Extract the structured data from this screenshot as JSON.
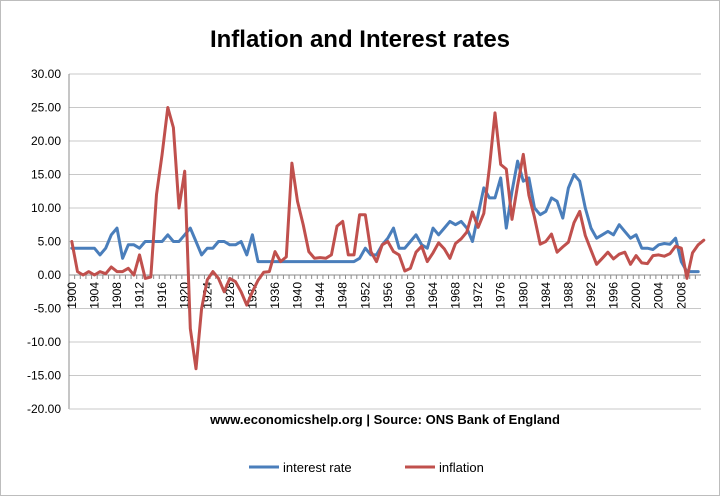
{
  "chart_data": {
    "type": "line",
    "title": "Inflation and Interest rates",
    "source_note": "www.economicshelp.org | Source: ONS Bank of England",
    "xlabel": "",
    "ylabel": "",
    "x_start": 1900,
    "x_end": 2011,
    "ylim": [
      -20,
      30
    ],
    "y_ticks": [
      "30.00",
      "25.00",
      "20.00",
      "15.00",
      "10.00",
      "5.00",
      "0.00",
      "-5.00",
      "-10.00",
      "-15.00",
      "-20.00"
    ],
    "x_tick_labels": [
      "1900",
      "1904",
      "1908",
      "1912",
      "1916",
      "1920",
      "1924",
      "1928",
      "1932",
      "1936",
      "1940",
      "1944",
      "1948",
      "1952",
      "1956",
      "1960",
      "1964",
      "1968",
      "1972",
      "1976",
      "1980",
      "1984",
      "1988",
      "1992",
      "1996",
      "2000",
      "2004",
      "2008"
    ],
    "legend_position": "bottom",
    "grid": true,
    "series": [
      {
        "name": "interest rate",
        "color": "#4a7ebb",
        "values": [
          4,
          4,
          4,
          4,
          4,
          3,
          4,
          6,
          7,
          2.5,
          4.5,
          4.5,
          4,
          5,
          5,
          5,
          5,
          6,
          5,
          5,
          6,
          7,
          5,
          3,
          4,
          4,
          5,
          5,
          4.5,
          4.5,
          5,
          3,
          6,
          2,
          2,
          2,
          2,
          2,
          2,
          2,
          2,
          2,
          2,
          2,
          2,
          2,
          2,
          2,
          2,
          2,
          2,
          2.5,
          4,
          3,
          3,
          4.5,
          5.5,
          7,
          4,
          4,
          5,
          6,
          4.5,
          4,
          7,
          6,
          7,
          8,
          7.5,
          8,
          7,
          5,
          9,
          13,
          11.5,
          11.5,
          14.5,
          7,
          12.5,
          17,
          14,
          14.5,
          10,
          9,
          9.5,
          11.5,
          11,
          8.5,
          13,
          15,
          14,
          10,
          7,
          5.5,
          6,
          6.5,
          6,
          7.5,
          6.5,
          5.5,
          6,
          4,
          4,
          3.8,
          4.5,
          4.7,
          4.6,
          5.5,
          2,
          0.5,
          0.5,
          0.5
        ]
      },
      {
        "name": "inflation",
        "color": "#c0504d",
        "values": [
          5,
          0.5,
          0,
          0.5,
          0,
          0.5,
          0.2,
          1.2,
          0.5,
          0.5,
          1,
          0,
          3,
          -0.5,
          -0.3,
          12,
          18,
          25,
          22,
          10,
          15.5,
          -8,
          -14,
          -5,
          -0.7,
          0.5,
          -0.5,
          -2.5,
          -0.5,
          -1,
          -2.5,
          -4.5,
          -2.5,
          -0.8,
          0.4,
          0.5,
          3.5,
          2,
          2.7,
          16.7,
          11,
          7.5,
          3.5,
          2.5,
          2.6,
          2.5,
          3,
          7.3,
          8,
          3,
          3,
          9,
          9,
          3.5,
          2,
          4.5,
          5,
          3.5,
          3,
          0.6,
          1,
          3.4,
          4.3,
          2,
          3.3,
          4.8,
          3.9,
          2.5,
          4.7,
          5.4,
          6.4,
          9.4,
          7.1,
          9.2,
          16,
          24.2,
          16.5,
          15.8,
          8.3,
          13.4,
          18,
          11.9,
          8.6,
          4.6,
          5,
          6.1,
          3.4,
          4.2,
          4.9,
          7.8,
          9.5,
          5.9,
          3.7,
          1.6,
          2.5,
          3.4,
          2.4,
          3.1,
          3.4,
          1.6,
          2.9,
          1.8,
          1.7,
          2.9,
          3,
          2.8,
          3.2,
          4.3,
          4,
          -0.5,
          3.3,
          4.5,
          5.2
        ]
      }
    ]
  }
}
